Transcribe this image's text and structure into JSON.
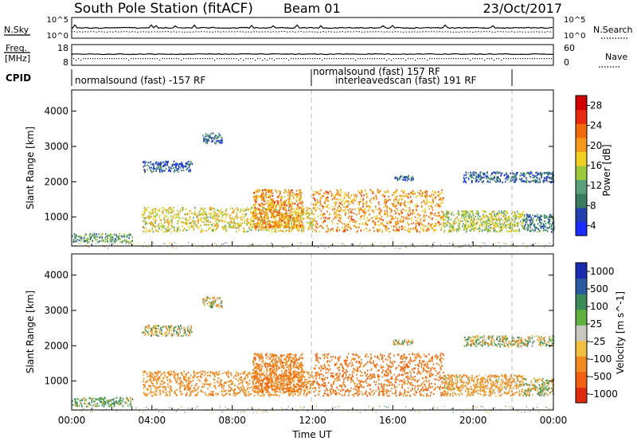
{
  "header": {
    "station": "South Pole Station (fitACF)",
    "beam": "Beam 01",
    "date": "23/Oct/2017"
  },
  "top_panels": {
    "nsky_label": "N.Sky",
    "nsky_ticks": [
      "10^5",
      "10^0"
    ],
    "nsearch_label": "N.Search",
    "nsearch_ticks": [
      "10^5",
      "10^0"
    ],
    "freq_label": "Freq.",
    "freq_unit": "[MHz]",
    "freq_ticks": [
      "18",
      "8"
    ],
    "nave_label": "Nave",
    "nave_ticks": [
      "60",
      "0"
    ],
    "cpid_label": "CPID"
  },
  "cpid_segments": [
    {
      "label": "normalsound (fast) -157 RF",
      "start_hour": 0,
      "end_hour": 12
    },
    {
      "label": "normalsound (fast) 157 RF",
      "start_hour": 12,
      "end_hour": 22
    },
    {
      "label": "interleavedscan (fast) 191 RF",
      "start_hour": 12,
      "end_hour": 22
    }
  ],
  "chart_data": [
    {
      "type": "heatmap",
      "name": "Power",
      "ylabel": "Slant Range [km]",
      "xlabel": "Time UT",
      "x_ticks": [
        "00:00",
        "04:00",
        "08:00",
        "12:00",
        "16:00",
        "20:00",
        "00:00"
      ],
      "xlim_hours": [
        0,
        24
      ],
      "y_ticks": [
        "4000",
        "3000",
        "2000",
        "1000"
      ],
      "ylim_km": [
        180,
        4600
      ],
      "colorbar_label": "Power [dB]",
      "colorbar_ticks": [
        "28",
        "24",
        "20",
        "16",
        "12",
        "8",
        "4"
      ],
      "colorbar_range": [
        0,
        30
      ],
      "colors": [
        "#1a2bff",
        "#2340b0",
        "#3a7c60",
        "#5aa07a",
        "#9cc83a",
        "#f0d020",
        "#f59a1a",
        "#f06a10",
        "#e82a10",
        "#d00000"
      ],
      "dashed_time_markers_hours": [
        12,
        22
      ],
      "echo_regions": [
        {
          "t_start": 0.0,
          "t_end": 3.0,
          "range_min": 300,
          "range_max": 550,
          "value": 10
        },
        {
          "t_start": 3.5,
          "t_end": 12.0,
          "range_min": 600,
          "range_max": 1300,
          "value": 16
        },
        {
          "t_start": 9.0,
          "t_end": 11.5,
          "range_min": 700,
          "range_max": 1800,
          "value": 20
        },
        {
          "t_start": 12.0,
          "t_end": 18.5,
          "range_min": 600,
          "range_max": 1800,
          "value": 20
        },
        {
          "t_start": 18.5,
          "t_end": 22.5,
          "range_min": 600,
          "range_max": 1200,
          "value": 14
        },
        {
          "t_start": 22.5,
          "t_end": 24.0,
          "range_min": 600,
          "range_max": 1100,
          "value": 8
        },
        {
          "t_start": 3.5,
          "t_end": 6.0,
          "range_min": 2300,
          "range_max": 2600,
          "value": 6
        },
        {
          "t_start": 6.5,
          "t_end": 7.5,
          "range_min": 3100,
          "range_max": 3400,
          "value": 6
        },
        {
          "t_start": 16.0,
          "t_end": 17.0,
          "range_min": 2050,
          "range_max": 2200,
          "value": 6
        },
        {
          "t_start": 19.5,
          "t_end": 24.0,
          "range_min": 2000,
          "range_max": 2300,
          "value": 6
        }
      ]
    },
    {
      "type": "heatmap",
      "name": "Velocity",
      "ylabel": "Slant Range [km]",
      "xlabel": "Time UT",
      "x_ticks": [
        "00:00",
        "04:00",
        "08:00",
        "12:00",
        "16:00",
        "20:00",
        "00:00"
      ],
      "xlim_hours": [
        0,
        24
      ],
      "y_ticks": [
        "4000",
        "3000",
        "2000",
        "1000"
      ],
      "ylim_km": [
        180,
        4600
      ],
      "colorbar_label": "Velocity [m s^-1]",
      "colorbar_ticks": [
        "1000",
        "500",
        "100",
        "25",
        "-25",
        "-100",
        "-500",
        "-1000"
      ],
      "colors": [
        "#1a2bb0",
        "#2a5aa0",
        "#3a8a5a",
        "#60b040",
        "#c8c8c0",
        "#f0c040",
        "#f08a20",
        "#f06010",
        "#e02a10"
      ],
      "dashed_time_markers_hours": [
        12,
        22
      ],
      "echo_regions": [
        {
          "t_start": 0.0,
          "t_end": 3.0,
          "range_min": 300,
          "range_max": 550,
          "value": 100
        },
        {
          "t_start": 3.5,
          "t_end": 12.0,
          "range_min": 600,
          "range_max": 1300,
          "value": -300
        },
        {
          "t_start": 9.0,
          "t_end": 11.5,
          "range_min": 700,
          "range_max": 1800,
          "value": -400
        },
        {
          "t_start": 12.0,
          "t_end": 18.5,
          "range_min": 600,
          "range_max": 1800,
          "value": -500
        },
        {
          "t_start": 18.5,
          "t_end": 22.5,
          "range_min": 600,
          "range_max": 1200,
          "value": -200
        },
        {
          "t_start": 22.5,
          "t_end": 24.0,
          "range_min": 600,
          "range_max": 1100,
          "value": 0
        },
        {
          "t_start": 3.5,
          "t_end": 6.0,
          "range_min": 2300,
          "range_max": 2600,
          "value": 0
        },
        {
          "t_start": 6.5,
          "t_end": 7.5,
          "range_min": 3100,
          "range_max": 3400,
          "value": 0
        },
        {
          "t_start": 16.0,
          "t_end": 17.0,
          "range_min": 2050,
          "range_max": 2200,
          "value": 0
        },
        {
          "t_start": 19.5,
          "t_end": 24.0,
          "range_min": 2000,
          "range_max": 2300,
          "value": 0
        }
      ]
    }
  ]
}
